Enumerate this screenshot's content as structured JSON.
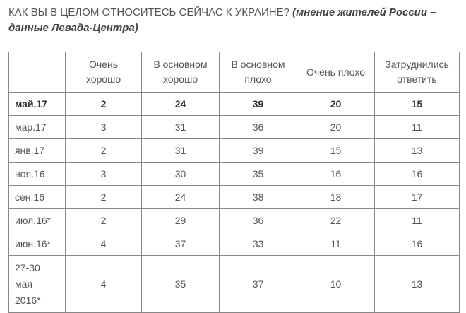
{
  "title": {
    "main": "КАК ВЫ В ЦЕЛОМ ОТНОСИТЕСЬ СЕЙЧАС К УКРАИНЕ?",
    "note": "(мнение жителей России – данные Левада-Центра)"
  },
  "table": {
    "columns": [
      "Очень хорошо",
      "В основном хорошо",
      "В основном плохо",
      "Очень плохо",
      "Затруднились ответить"
    ],
    "rows": [
      [
        "май.17",
        2,
        24,
        39,
        20,
        15
      ],
      [
        "мар.17",
        3,
        31,
        36,
        20,
        11
      ],
      [
        "янв.17",
        2,
        31,
        39,
        15,
        13
      ],
      [
        "ноя.16",
        3,
        30,
        35,
        16,
        16
      ],
      [
        "сен.16",
        2,
        24,
        38,
        18,
        17
      ],
      [
        "июл.16*",
        2,
        29,
        36,
        22,
        11
      ],
      [
        "июн.16*",
        4,
        37,
        33,
        11,
        16
      ],
      [
        "27-30 мая 2016*",
        4,
        35,
        37,
        10,
        13
      ]
    ]
  }
}
